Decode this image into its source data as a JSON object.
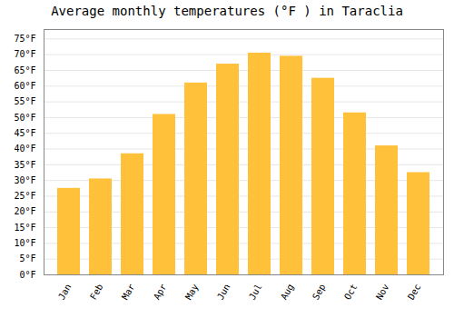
{
  "chart_data": {
    "type": "bar",
    "title": "Average monthly temperatures (°F ) in Taraclia",
    "categories": [
      "Jan",
      "Feb",
      "Mar",
      "Apr",
      "May",
      "Jun",
      "Jul",
      "Aug",
      "Sep",
      "Oct",
      "Nov",
      "Dec"
    ],
    "values": [
      27.5,
      30.5,
      38.5,
      51.0,
      61.0,
      67.0,
      70.5,
      69.5,
      62.5,
      51.5,
      41.0,
      32.5
    ],
    "color": "#FFC03A",
    "ylim": [
      0,
      78
    ],
    "yticks": [
      {
        "value": 0,
        "label": "0°F"
      },
      {
        "value": 5,
        "label": "5°F"
      },
      {
        "value": 10,
        "label": "10°F"
      },
      {
        "value": 15,
        "label": "15°F"
      },
      {
        "value": 20,
        "label": "20°F"
      },
      {
        "value": 25,
        "label": "25°F"
      },
      {
        "value": 30,
        "label": "30°F"
      },
      {
        "value": 35,
        "label": "35°F"
      },
      {
        "value": 40,
        "label": "40°F"
      },
      {
        "value": 45,
        "label": "45°F"
      },
      {
        "value": 50,
        "label": "50°F"
      },
      {
        "value": 55,
        "label": "55°F"
      },
      {
        "value": 60,
        "label": "60°F"
      },
      {
        "value": 65,
        "label": "65°F"
      },
      {
        "value": 70,
        "label": "70°F"
      },
      {
        "value": 75,
        "label": "75°F"
      }
    ],
    "grid": true
  }
}
